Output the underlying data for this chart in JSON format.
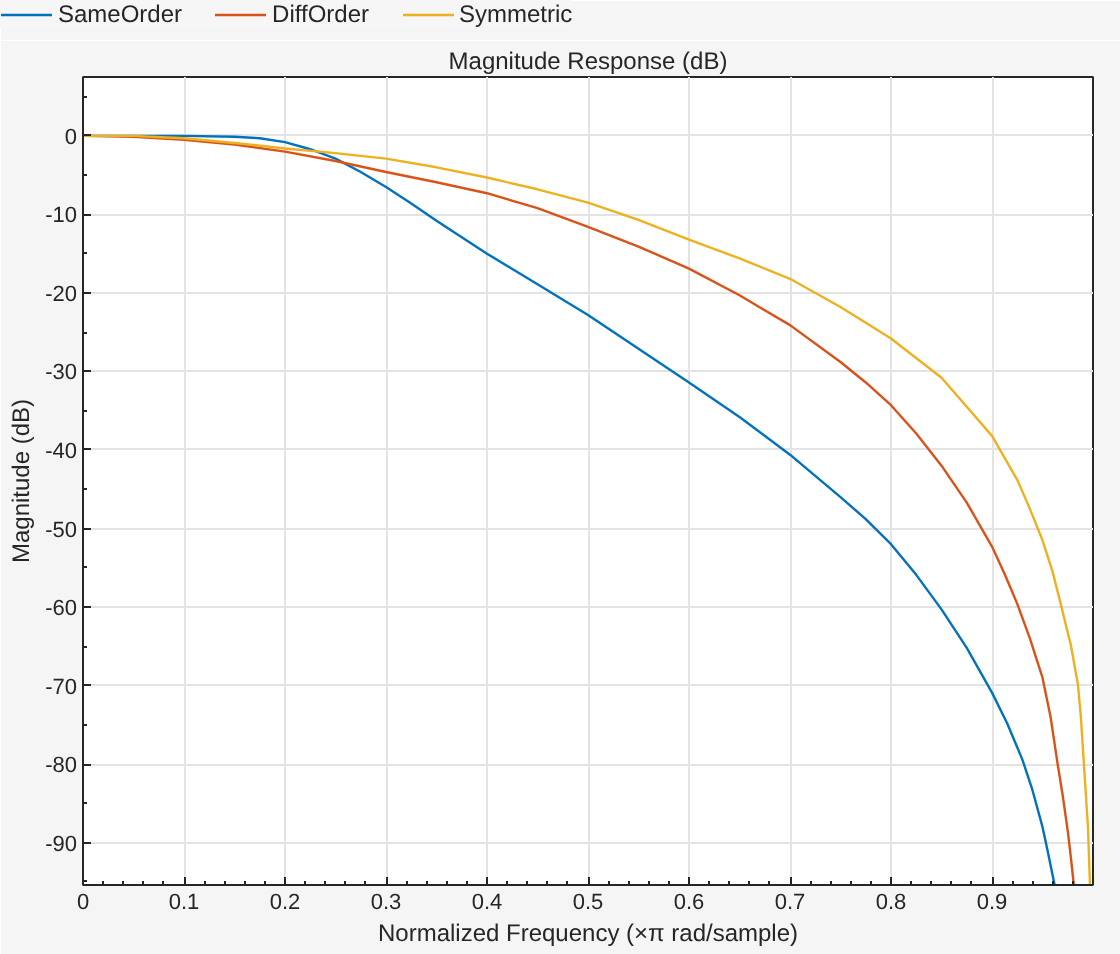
{
  "chart_data": {
    "type": "line",
    "title": "Magnitude Response (dB)",
    "xlabel": "Normalized Frequency (×π rad/sample)",
    "ylabel": "Magnitude (dB)",
    "xlim": [
      0,
      1
    ],
    "ylim": [
      -95.4,
      7.5
    ],
    "xticks": [
      0,
      0.1,
      0.2,
      0.3,
      0.4,
      0.5,
      0.6,
      0.7,
      0.8,
      0.9
    ],
    "yticks": [
      -90,
      -80,
      -70,
      -60,
      -50,
      -40,
      -30,
      -20,
      -10,
      0
    ],
    "grid": true,
    "legend": "top",
    "line_style": "solid",
    "marker": "none",
    "series": [
      {
        "name": "SameOrder",
        "color": "#0072bd",
        "x": [
          0,
          0.05,
          0.1,
          0.15,
          0.175,
          0.2,
          0.225,
          0.25,
          0.275,
          0.3,
          0.325,
          0.35,
          0.4,
          0.45,
          0.5,
          0.55,
          0.6,
          0.65,
          0.7,
          0.75,
          0.775,
          0.8,
          0.825,
          0.85,
          0.875,
          0.9,
          0.915,
          0.93,
          0.94,
          0.95,
          0.955,
          0.962
        ],
        "values": [
          0,
          0,
          0,
          -0.1,
          -0.3,
          -0.8,
          -1.7,
          -2.9,
          -4.6,
          -6.5,
          -8.6,
          -10.8,
          -15.0,
          -18.9,
          -22.8,
          -27.1,
          -31.4,
          -35.8,
          -40.6,
          -46.0,
          -48.8,
          -52.0,
          -55.9,
          -60.3,
          -65.2,
          -70.9,
          -74.8,
          -79.4,
          -83.3,
          -88.0,
          -91.0,
          -95.4
        ]
      },
      {
        "name": "DiffOrder",
        "color": "#d95319",
        "x": [
          0,
          0.05,
          0.1,
          0.15,
          0.2,
          0.25,
          0.3,
          0.35,
          0.4,
          0.45,
          0.5,
          0.55,
          0.6,
          0.65,
          0.7,
          0.75,
          0.775,
          0.8,
          0.825,
          0.85,
          0.875,
          0.9,
          0.9125,
          0.925,
          0.9375,
          0.95,
          0.958,
          0.965,
          0.97,
          0.975,
          0.978,
          0.981
        ],
        "values": [
          0,
          -0.1,
          -0.5,
          -1.1,
          -2.0,
          -3.2,
          -4.6,
          -5.9,
          -7.3,
          -9.2,
          -11.6,
          -14.1,
          -16.9,
          -20.3,
          -24.1,
          -28.8,
          -31.4,
          -34.3,
          -37.9,
          -42.0,
          -46.7,
          -52.3,
          -55.8,
          -59.6,
          -64.0,
          -69.0,
          -74.0,
          -80.0,
          -84.0,
          -88.5,
          -91.8,
          -95.4
        ]
      },
      {
        "name": "Symmetric",
        "color": "#edb120",
        "x": [
          0,
          0.05,
          0.1,
          0.15,
          0.2,
          0.25,
          0.3,
          0.35,
          0.4,
          0.45,
          0.5,
          0.55,
          0.6,
          0.65,
          0.7,
          0.75,
          0.8,
          0.85,
          0.875,
          0.9,
          0.925,
          0.9375,
          0.95,
          0.96,
          0.968,
          0.978,
          0.985,
          0.988,
          0.991,
          0.995,
          0.997
        ],
        "values": [
          0,
          0,
          -0.3,
          -0.9,
          -1.6,
          -2.2,
          -2.9,
          -4.0,
          -5.3,
          -6.8,
          -8.5,
          -10.7,
          -13.2,
          -15.6,
          -18.2,
          -21.8,
          -25.8,
          -30.8,
          -34.5,
          -38.2,
          -43.8,
          -47.5,
          -51.5,
          -55.5,
          -59.6,
          -64.8,
          -69.8,
          -74.0,
          -80.0,
          -88.0,
          -95.4
        ]
      }
    ]
  }
}
